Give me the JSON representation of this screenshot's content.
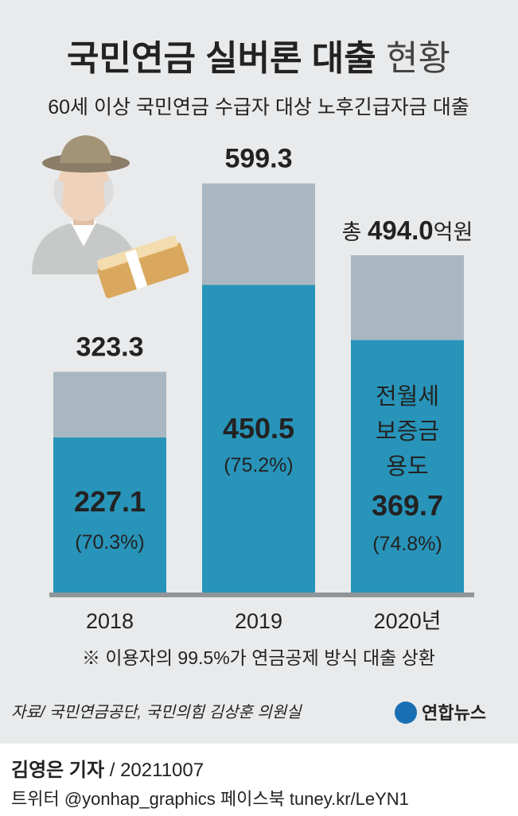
{
  "chart_data": {
    "type": "bar",
    "title": "국민연금 실버론 대출",
    "title_suffix": "현황",
    "subtitle": "60세 이상 국민연금 수급자 대상 노후긴급자금 대출",
    "categories": [
      "2018",
      "2019",
      "2020년"
    ],
    "ylim": [
      0,
      600
    ],
    "series": [
      {
        "color": "#a8b7c1",
        "values": [
          323.3,
          599.3,
          494.0
        ],
        "value_labels": [
          "323.3",
          "599.3",
          "494.0"
        ]
      },
      {
        "color": "#2894b9",
        "values": [
          227.1,
          450.5,
          369.7
        ],
        "share": [
          70.3,
          75.2,
          74.8
        ],
        "share_labels": [
          "(70.3%)",
          "(75.2%)",
          "(74.8%)"
        ]
      }
    ],
    "total_prefix": "총",
    "total_unit": "억원",
    "annotation_lines": [
      "전월세",
      "보증금",
      "용도"
    ],
    "footnote": "※ 이용자의 99.5%가 연금공제 방식 대출 상환",
    "source": "자료/ 국민연금공단, 국민의힘 김상훈 의원실",
    "logo": "연합뉴스",
    "byline_name": "김영은 기자",
    "byline_date": "/ 20211007",
    "social": "트위터 @yonhap_graphics  페이스북 tuney.kr/LeYN1"
  }
}
